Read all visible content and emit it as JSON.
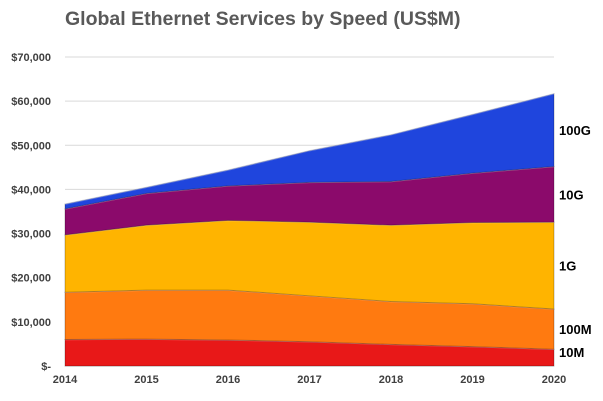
{
  "chart_data": {
    "type": "area",
    "stacked": true,
    "title": "Global Ethernet Services by Speed (US$M)",
    "xlabel": "",
    "ylabel": "",
    "categories": [
      "2014",
      "2015",
      "2016",
      "2017",
      "2018",
      "2019",
      "2020"
    ],
    "ylim": [
      0,
      70000
    ],
    "yticks": [
      0,
      10000,
      20000,
      30000,
      40000,
      50000,
      60000,
      70000
    ],
    "ytick_labels": [
      "$-",
      "$10,000",
      "$20,000",
      "$30,000",
      "$40,000",
      "$50,000",
      "$60,000",
      "$70,000"
    ],
    "grid": true,
    "legend": "right-end labels",
    "series": [
      {
        "name": "10M",
        "color": "#e81818",
        "values": [
          6000,
          6100,
          5900,
          5500,
          4900,
          4400,
          3800
        ]
      },
      {
        "name": "100M",
        "color": "#ff7a10",
        "values": [
          10700,
          11100,
          11300,
          10400,
          9700,
          9700,
          9100
        ]
      },
      {
        "name": "1G",
        "color": "#ffb400",
        "values": [
          13000,
          14700,
          15800,
          16700,
          17300,
          18400,
          19700
        ]
      },
      {
        "name": "10G",
        "color": "#8b0a6b",
        "values": [
          5900,
          7200,
          7800,
          9000,
          9900,
          11200,
          12600
        ]
      },
      {
        "name": "100G",
        "color": "#1f45dd",
        "values": [
          1100,
          1400,
          3600,
          7200,
          10600,
          13300,
          16500
        ]
      }
    ]
  }
}
